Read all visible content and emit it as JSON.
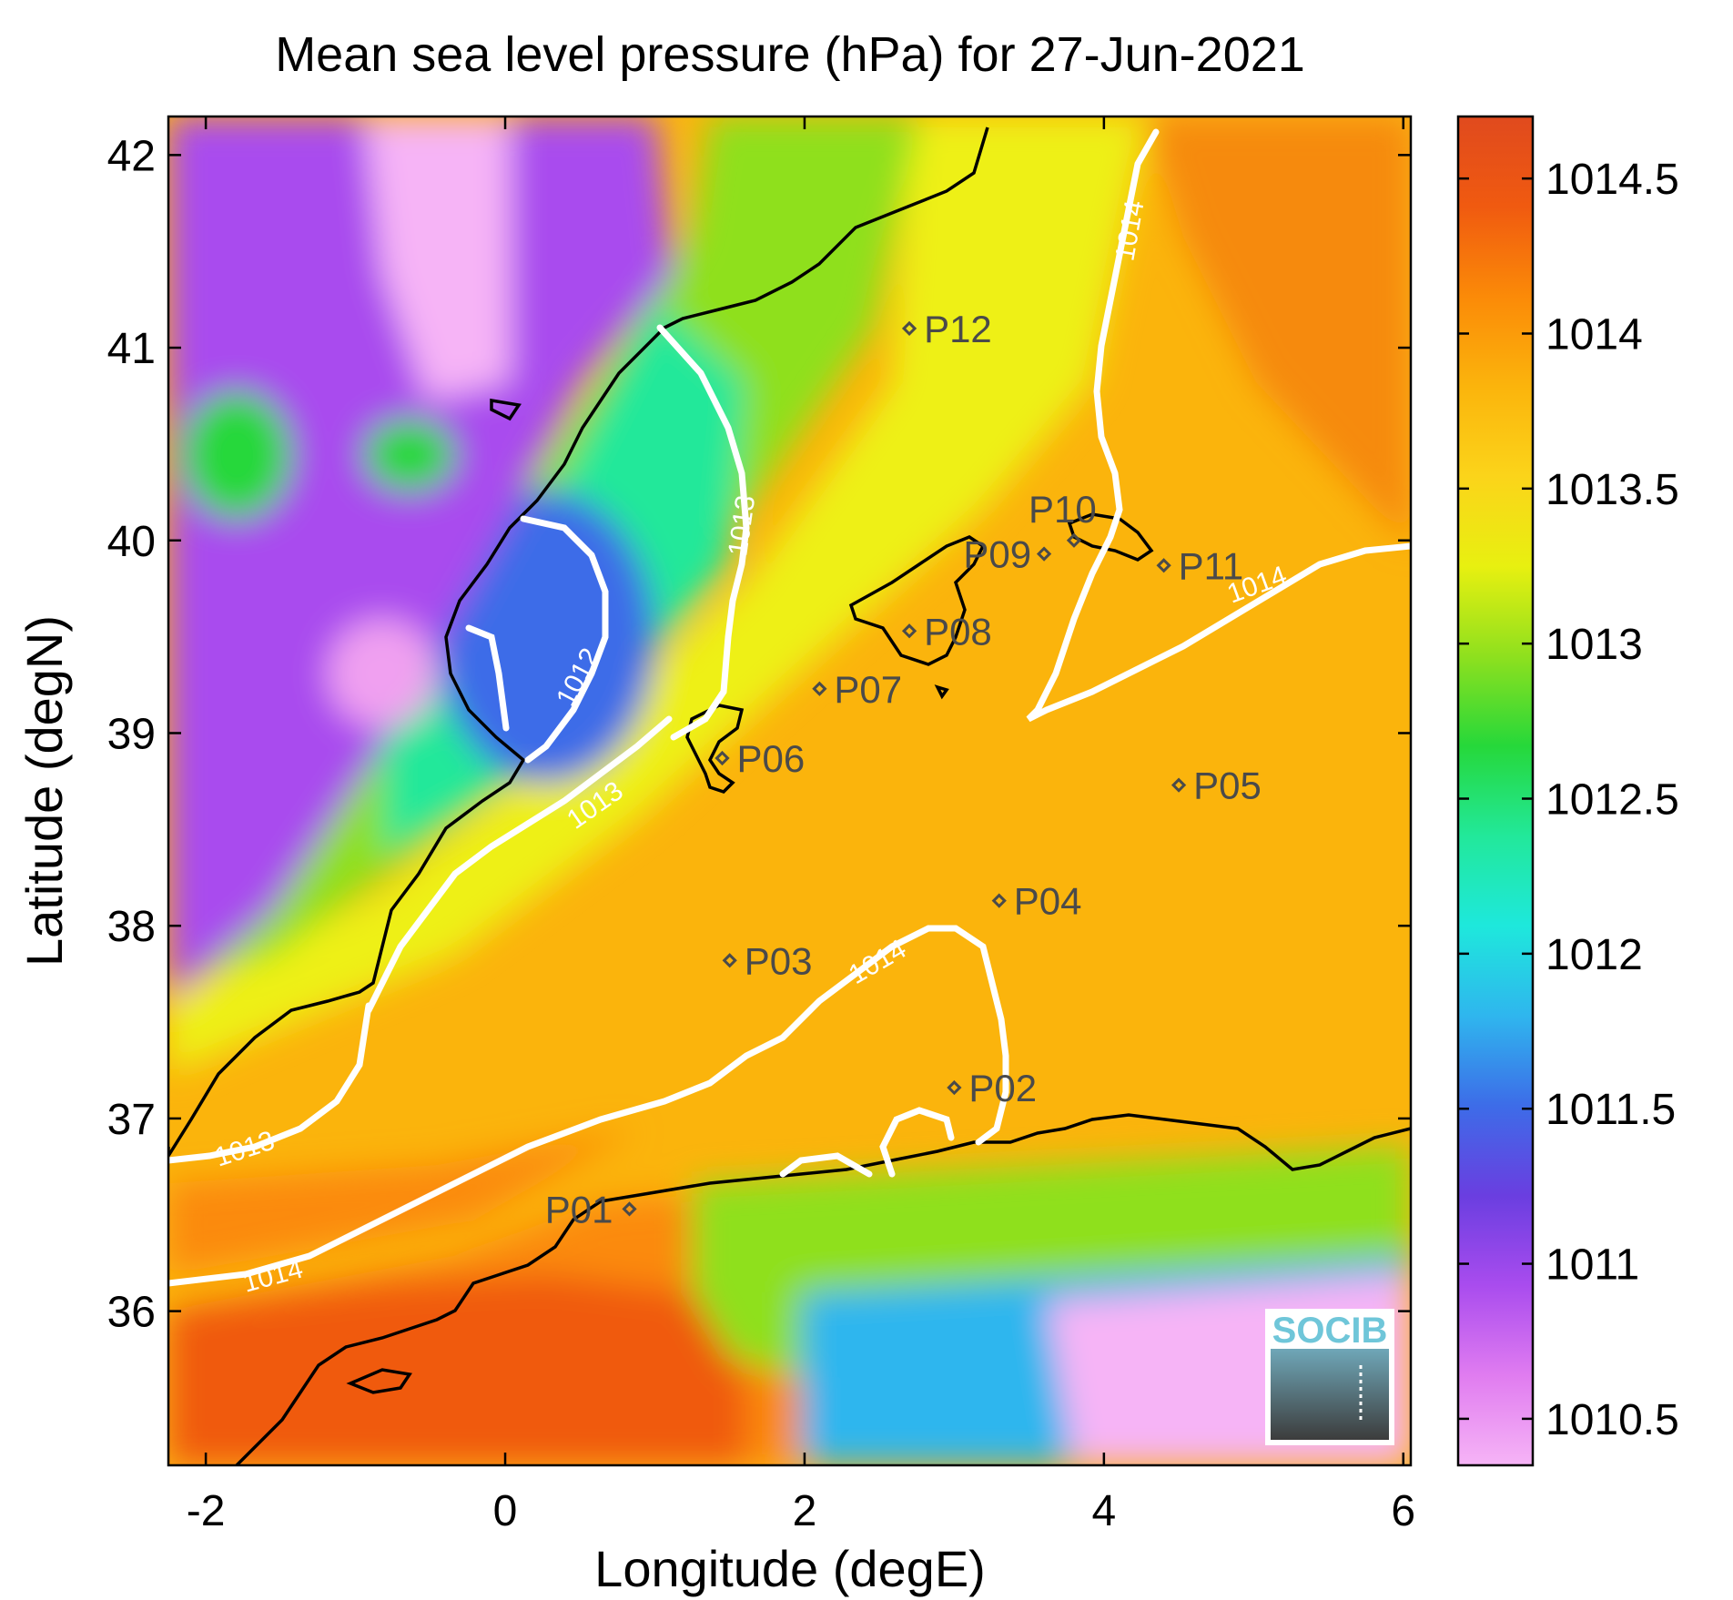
{
  "title": "Mean sea level pressure (hPa) for 27-Jun-2021",
  "x_label": "Longitude (degE)",
  "y_label": "Latitude (degN)",
  "x_ticks": [
    "-2",
    "0",
    "2",
    "4",
    "6"
  ],
  "y_ticks": [
    "42",
    "41",
    "40",
    "39",
    "38",
    "37",
    "36"
  ],
  "colorbar": {
    "min": 1010.35,
    "max": 1014.7,
    "ticks": [
      "1014.5",
      "1014",
      "1013.5",
      "1013",
      "1012.5",
      "1012",
      "1011.5",
      "1011",
      "1010.5"
    ],
    "colors": [
      "#f6b4f6",
      "#e07cf0",
      "#a94cee",
      "#6a3ee0",
      "#3d6ce8",
      "#2fb6ee",
      "#1ee8dc",
      "#22e89a",
      "#26d83a",
      "#8fe01e",
      "#e8f010",
      "#fbd41a",
      "#fbb40c",
      "#fb8a08",
      "#f05a10",
      "#e04a1e"
    ]
  },
  "stations": [
    {
      "name": "P01",
      "lon": 0.83,
      "lat": 36.53
    },
    {
      "name": "P02",
      "lon": 3.0,
      "lat": 37.16
    },
    {
      "name": "P03",
      "lon": 1.5,
      "lat": 37.82
    },
    {
      "name": "P04",
      "lon": 3.3,
      "lat": 38.13
    },
    {
      "name": "P05",
      "lon": 4.5,
      "lat": 38.73
    },
    {
      "name": "P06",
      "lon": 1.45,
      "lat": 38.87
    },
    {
      "name": "P07",
      "lon": 2.1,
      "lat": 39.23
    },
    {
      "name": "P08",
      "lon": 2.7,
      "lat": 39.53
    },
    {
      "name": "P09",
      "lon": 3.6,
      "lat": 39.93
    },
    {
      "name": "P10",
      "lon": 3.8,
      "lat": 40.0
    },
    {
      "name": "P11",
      "lon": 4.4,
      "lat": 39.87
    },
    {
      "name": "P12",
      "lon": 2.7,
      "lat": 41.1
    }
  ],
  "contour_labels": [
    "1013",
    "1012",
    "1013",
    "1014",
    "1014",
    "1014",
    "1013",
    "1014"
  ],
  "logo": "SOCIB"
}
